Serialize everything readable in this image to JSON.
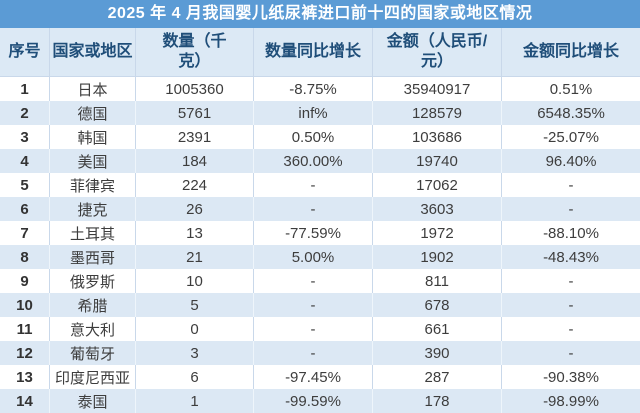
{
  "colors": {
    "title_bg": "#5B9BD5",
    "title_text": "#FFFFFF",
    "header_bg": "#DCE9F5",
    "header_text": "#1F4E79",
    "row_alt_bg": "#DCE8F4",
    "row_bg": "#FFFFFF",
    "cell_text": "#3D3D3D",
    "grid_border": "#C9D8EA"
  },
  "chart_data": {
    "type": "table",
    "title": "2025 年 4 月我国婴儿纸尿裤进口前十四的国家或地区情况",
    "columns": [
      "序号",
      "国家或地区",
      "数量（千克）",
      "数量同比增长",
      "金额（人民币/元）",
      "金额同比增长"
    ],
    "rows": [
      [
        "1",
        "日本",
        "1005360",
        "-8.75%",
        "35940917",
        "0.51%"
      ],
      [
        "2",
        "德国",
        "5761",
        "inf%",
        "128579",
        "6548.35%"
      ],
      [
        "3",
        "韩国",
        "2391",
        "0.50%",
        "103686",
        "-25.07%"
      ],
      [
        "4",
        "美国",
        "184",
        "360.00%",
        "19740",
        "96.40%"
      ],
      [
        "5",
        "菲律宾",
        "224",
        "-",
        "17062",
        "-"
      ],
      [
        "6",
        "捷克",
        "26",
        "-",
        "3603",
        "-"
      ],
      [
        "7",
        "土耳其",
        "13",
        "-77.59%",
        "1972",
        "-88.10%"
      ],
      [
        "8",
        "墨西哥",
        "21",
        "5.00%",
        "1902",
        "-48.43%"
      ],
      [
        "9",
        "俄罗斯",
        "10",
        "-",
        "811",
        "-"
      ],
      [
        "10",
        "希腊",
        "5",
        "-",
        "678",
        "-"
      ],
      [
        "11",
        "意大利",
        "0",
        "-",
        "661",
        "-"
      ],
      [
        "12",
        "葡萄牙",
        "3",
        "-",
        "390",
        "-"
      ],
      [
        "13",
        "印度尼西亚",
        "6",
        "-97.45%",
        "287",
        "-90.38%"
      ],
      [
        "14",
        "泰国",
        "1",
        "-99.59%",
        "178",
        "-98.99%"
      ]
    ]
  }
}
